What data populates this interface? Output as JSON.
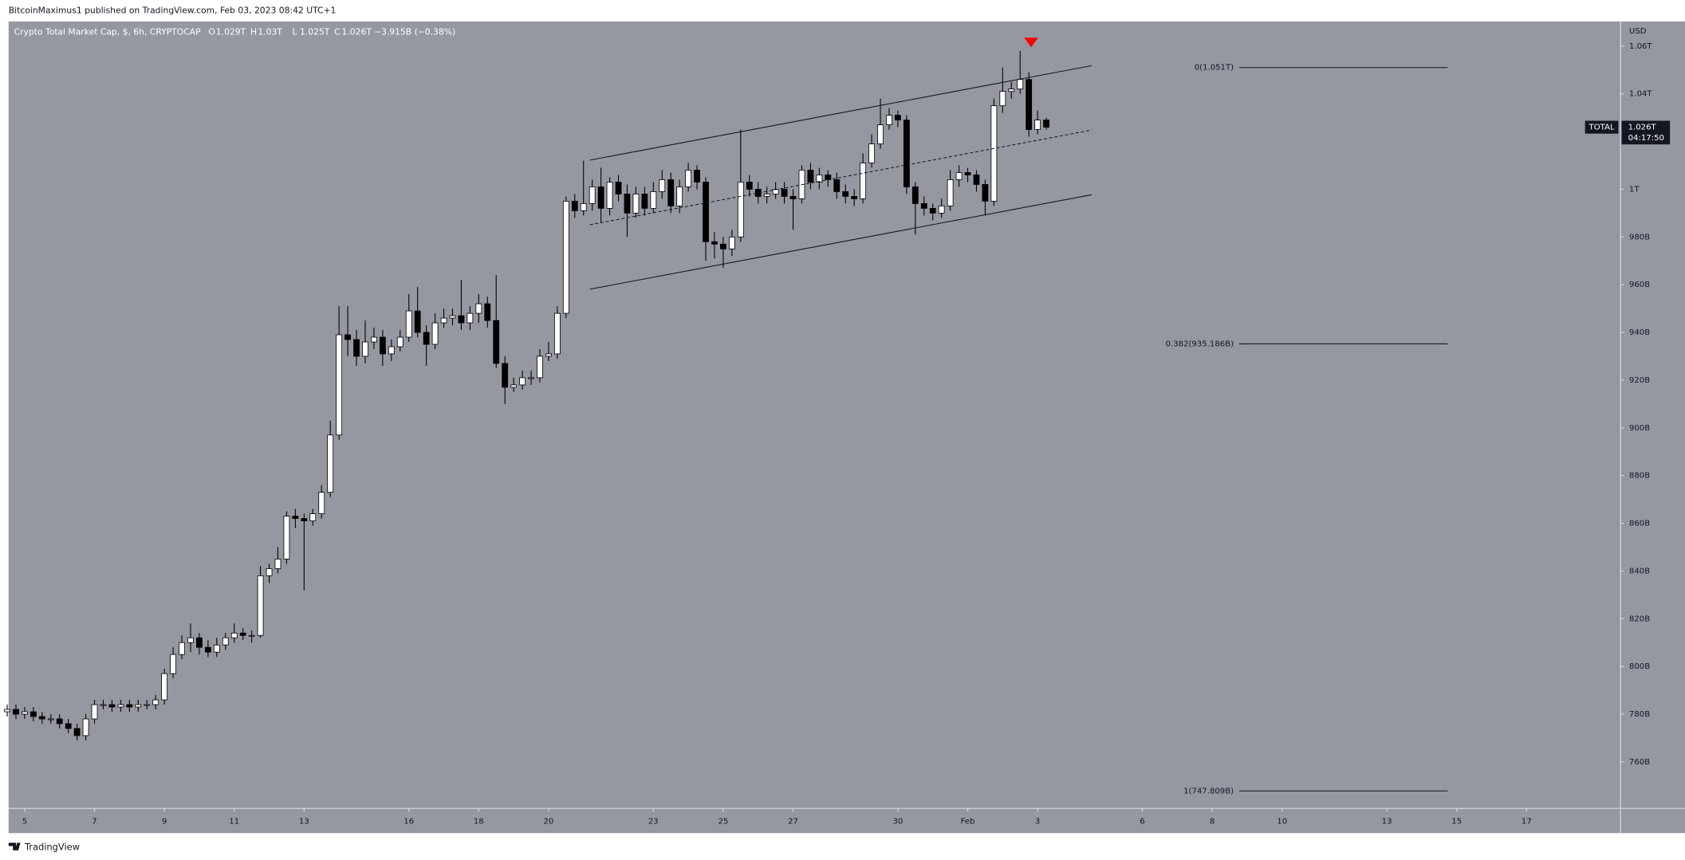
{
  "header": {
    "published": "BitcoinMaximus1 published on TradingView.com, Feb 03, 2023 08:42 UTC+1",
    "symbol": "Crypto Total Market Cap, $, 6h, CRYPTOCAP",
    "ohlc_labels": [
      {
        "key": "O",
        "value": "1.029T"
      },
      {
        "key": "H",
        "value": "1.03T"
      },
      {
        "key": "L",
        "value": "1.025T"
      },
      {
        "key": "C",
        "value": "1.026T"
      }
    ],
    "change": "−3.915B (−0.38%)"
  },
  "footer": {
    "brand": "TradingView"
  },
  "chart_data": {
    "type": "candlestick",
    "currency": "USD",
    "xlim": [
      4.54,
      50.69
    ],
    "ylim": [
      740.5,
      1070.3
    ],
    "xticks": [
      5,
      7,
      9,
      11,
      13,
      16,
      18,
      20,
      23,
      25,
      27,
      30,
      {
        "value": 32,
        "label": "Feb"
      },
      {
        "value": 34,
        "label": "3"
      },
      {
        "value": 37,
        "label": "6"
      },
      {
        "value": 39,
        "label": "8"
      },
      {
        "value": 41,
        "label": "10"
      },
      {
        "value": 44,
        "label": "13"
      },
      {
        "value": 46,
        "label": "15"
      },
      {
        "value": 48,
        "label": "17"
      }
    ],
    "yticks": [
      {
        "value": 760,
        "label": "760B"
      },
      {
        "value": 780,
        "label": "780B"
      },
      {
        "value": 800,
        "label": "800B"
      },
      {
        "value": 820,
        "label": "820B"
      },
      {
        "value": 840,
        "label": "840B"
      },
      {
        "value": 860,
        "label": "860B"
      },
      {
        "value": 880,
        "label": "880B"
      },
      {
        "value": 900,
        "label": "900B"
      },
      {
        "value": 920,
        "label": "920B"
      },
      {
        "value": 940,
        "label": "940B"
      },
      {
        "value": 960,
        "label": "960B"
      },
      {
        "value": 980,
        "label": "980B"
      },
      {
        "value": 1000,
        "label": "1T"
      },
      {
        "value": 1040,
        "label": "1.04T"
      },
      {
        "value": 1060,
        "label": "1.06T"
      }
    ],
    "up_color": "#ffffff",
    "down_color": "#000000",
    "x": [
      4.5,
      4.75,
      5,
      5.25,
      5.5,
      5.75,
      6,
      6.25,
      6.5,
      6.75,
      7,
      7.25,
      7.5,
      7.75,
      8,
      8.25,
      8.5,
      8.75,
      9,
      9.25,
      9.5,
      9.75,
      10,
      10.25,
      10.5,
      10.75,
      11,
      11.25,
      11.5,
      11.75,
      12,
      12.25,
      12.5,
      12.75,
      13,
      13.25,
      13.5,
      13.75,
      14,
      14.25,
      14.5,
      14.75,
      15,
      15.25,
      15.5,
      15.75,
      16,
      16.25,
      16.5,
      16.75,
      17,
      17.25,
      17.5,
      17.75,
      18,
      18.25,
      18.5,
      18.75,
      19,
      19.25,
      19.5,
      19.75,
      20,
      20.25,
      20.5,
      20.75,
      21,
      21.25,
      21.5,
      21.75,
      22,
      22.25,
      22.5,
      22.75,
      23,
      23.25,
      23.5,
      23.75,
      24,
      24.25,
      24.5,
      24.75,
      25,
      25.25,
      25.5,
      25.75,
      26,
      26.25,
      26.5,
      26.75,
      27,
      27.25,
      27.5,
      27.75,
      28,
      28.25,
      28.5,
      28.75,
      29,
      29.25,
      29.5,
      29.75,
      30,
      30.25,
      30.5,
      30.75,
      31,
      31.25,
      31.5,
      31.75,
      32,
      32.25,
      32.5,
      32.75,
      33,
      33.25,
      33.5,
      33.75,
      34,
      34.25
    ],
    "open": [
      781,
      782,
      780,
      781,
      779,
      778,
      778,
      776,
      774,
      771,
      778,
      784,
      784,
      783,
      784,
      783,
      784,
      784,
      786,
      797,
      805,
      810,
      812,
      808,
      806,
      809,
      812,
      814,
      813,
      813,
      838,
      841,
      845,
      863,
      862,
      861,
      864,
      873,
      897,
      939,
      937,
      930,
      936,
      938,
      931,
      934,
      938,
      949,
      940,
      935,
      944,
      946,
      947,
      944,
      948,
      952,
      945,
      927,
      917,
      918,
      921,
      921,
      930,
      931,
      948,
      995,
      991,
      994,
      1001,
      992,
      1003,
      998,
      990,
      998,
      992,
      999,
      1004,
      993,
      1001,
      1008,
      1003,
      978,
      977,
      975,
      980,
      1003,
      1000,
      997,
      998,
      1000,
      997,
      996,
      1008,
      1003,
      1006,
      1004,
      999,
      997,
      996,
      1011,
      1019,
      1027,
      1031,
      1029,
      1001,
      994,
      992,
      990,
      993,
      1004,
      1007,
      1006,
      1002,
      995,
      1035,
      1041,
      1042,
      1046,
      1025,
      1029
    ],
    "high": [
      784,
      784,
      783,
      783,
      781,
      780,
      780,
      778,
      776,
      780,
      786,
      786,
      786,
      786,
      786,
      786,
      786,
      788,
      799,
      808,
      813,
      818,
      814,
      811,
      812,
      814,
      818,
      816,
      815,
      842,
      843,
      850,
      865,
      866,
      864,
      866,
      876,
      903,
      951,
      951,
      941,
      945,
      942,
      941,
      937,
      941,
      956,
      959,
      943,
      948,
      950,
      950,
      962,
      951,
      956,
      955,
      964,
      930,
      921,
      924,
      924,
      933,
      936,
      951,
      997,
      998,
      1012,
      1004,
      1009,
      1005,
      1006,
      1002,
      1001,
      1001,
      1003,
      1008,
      1007,
      1004,
      1011,
      1010,
      1005,
      982,
      980,
      983,
      1025,
      1006,
      1003,
      1001,
      1003,
      1003,
      1000,
      1010,
      1011,
      1009,
      1008,
      1007,
      1002,
      1000,
      1015,
      1023,
      1038,
      1034,
      1033,
      1031,
      1003,
      997,
      994,
      996,
      1008,
      1010,
      1009,
      1008,
      1004,
      1038,
      1051,
      1045,
      1058,
      1049,
      1033,
      1030
    ],
    "low": [
      779,
      778,
      778,
      777,
      776,
      776,
      774,
      772,
      769,
      769,
      776,
      782,
      781,
      781,
      781,
      781,
      782,
      782,
      784,
      795,
      803,
      806,
      805,
      804,
      804,
      807,
      810,
      811,
      810,
      812,
      835,
      839,
      843,
      858,
      832,
      859,
      862,
      871,
      895,
      930,
      926,
      927,
      933,
      926,
      928,
      932,
      936,
      938,
      926,
      933,
      942,
      943,
      941,
      941,
      944,
      942,
      925,
      910,
      915,
      916,
      918,
      919,
      928,
      929,
      946,
      988,
      989,
      991,
      986,
      989,
      995,
      980,
      988,
      989,
      990,
      996,
      990,
      990,
      999,
      1000,
      970,
      971,
      967,
      972,
      978,
      997,
      994,
      994,
      996,
      994,
      983,
      994,
      1000,
      1000,
      1001,
      996,
      994,
      993,
      994,
      1009,
      1017,
      1025,
      1026,
      998,
      981,
      989,
      987,
      988,
      991,
      1001,
      1003,
      999,
      989,
      993,
      1032,
      1038,
      1040,
      1022,
      1023,
      1025
    ],
    "close": [
      782,
      780,
      781,
      779,
      778,
      778,
      776,
      774,
      771,
      778,
      784,
      784,
      783,
      784,
      783,
      784,
      784,
      786,
      797,
      805,
      810,
      812,
      808,
      806,
      809,
      812,
      814,
      813,
      813,
      838,
      841,
      845,
      863,
      862,
      861,
      864,
      873,
      897,
      939,
      937,
      930,
      936,
      938,
      931,
      934,
      938,
      949,
      940,
      935,
      944,
      946,
      947,
      944,
      948,
      952,
      945,
      927,
      917,
      918,
      921,
      921,
      930,
      931,
      948,
      995,
      991,
      994,
      1001,
      992,
      1003,
      998,
      990,
      998,
      992,
      999,
      1004,
      993,
      1001,
      1008,
      1003,
      978,
      977,
      975,
      980,
      1003,
      1000,
      997,
      998,
      1000,
      997,
      996,
      1008,
      1003,
      1006,
      1004,
      999,
      997,
      996,
      1011,
      1019,
      1027,
      1031,
      1029,
      1001,
      994,
      992,
      990,
      993,
      1004,
      1007,
      1006,
      1002,
      995,
      1035,
      1041,
      1042,
      1046,
      1025,
      1029,
      1026
    ],
    "trendlines": [
      {
        "x": [
          21.18,
          35.55
        ],
        "y": [
          1012.2,
          1051.8
        ],
        "dashed": false
      },
      {
        "x": [
          21.18,
          35.55
        ],
        "y": [
          985.1,
          1024.8
        ],
        "dashed": true
      },
      {
        "x": [
          21.18,
          35.55
        ],
        "y": [
          958.1,
          997.7
        ],
        "dashed": false
      }
    ],
    "fib_x": [
      39.77,
      45.74
    ],
    "fib_levels": [
      {
        "value": 1051,
        "label": "0(1.051T)"
      },
      {
        "value": 935.186,
        "label": "0.382(935.186B)"
      },
      {
        "value": 747.809,
        "label": "1(747.809B)"
      }
    ],
    "price_label": {
      "name": "TOTAL",
      "value": 1026,
      "label": "1.026T",
      "timer": "04:17:50"
    }
  }
}
